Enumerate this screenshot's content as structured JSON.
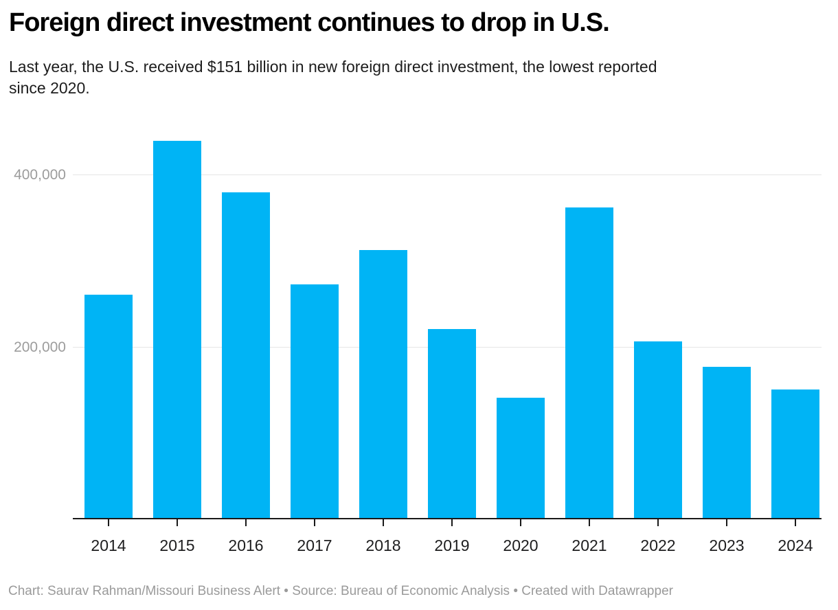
{
  "header": {
    "title": "Foreign direct investment continues to drop in U.S.",
    "subtitle": "Last year, the U.S. received $151 billion in new foreign direct investment, the lowest reported since 2020.",
    "subtitle_lines": [
      "Last year, the U.S. received $151 billion in new foreign direct investment, the lowest reported",
      "since 2020."
    ]
  },
  "chart_data": {
    "type": "bar",
    "title": "Foreign direct investment continues to drop in U.S.",
    "categories": [
      "2014",
      "2015",
      "2016",
      "2017",
      "2018",
      "2019",
      "2020",
      "2021",
      "2022",
      "2023",
      "2024"
    ],
    "values": [
      261000,
      440000,
      380000,
      273500,
      313000,
      221000,
      141500,
      363000,
      206500,
      177000,
      151000
    ],
    "units": "millions of U.S. dollars",
    "xlabel": "",
    "ylabel": "",
    "ylim": [
      0,
      468000
    ],
    "yticks": [
      200000,
      400000
    ],
    "ytick_labels": [
      "200,000",
      "400,000"
    ],
    "grid": "horizontal-only",
    "legend": "none",
    "bar_color": "#00b4f5"
  },
  "colors": {
    "bar": "#00b4f5",
    "gridline": "#e6e6e6",
    "axis": "#191919",
    "y_label": "#9c9c9c",
    "x_label": "#1d1d1e",
    "footer": "#9a9a9a",
    "title": "#000000",
    "subtitle": "#1d1d1d",
    "background": "#ffffff"
  },
  "footer": {
    "text": "Chart: Saurav Rahman/Missouri Business Alert • Source: Bureau of Economic Analysis • Created with Datawrapper",
    "chart_credit": "Chart: Saurav Rahman/Missouri Business Alert",
    "source": "Source: Bureau of Economic Analysis",
    "created_with": "Created with Datawrapper",
    "separator": "•"
  }
}
